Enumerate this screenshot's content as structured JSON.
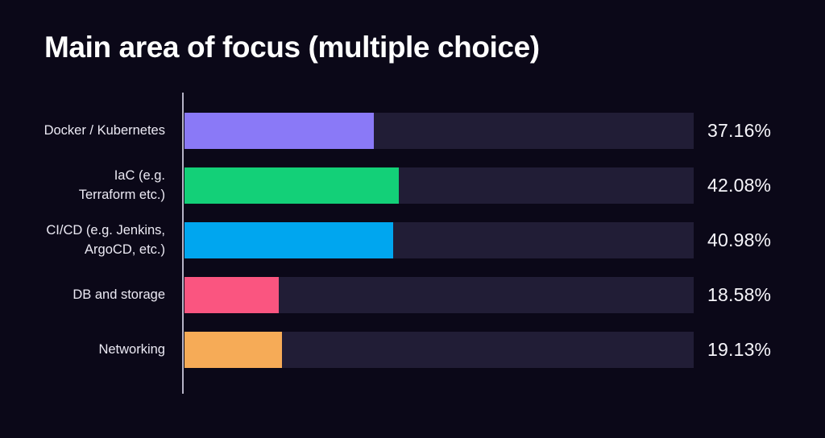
{
  "chart_data": {
    "type": "bar",
    "orientation": "horizontal",
    "title": "Main area of focus (multiple choice)",
    "categories": [
      "Docker / Kubernetes",
      "IaC (e.g.\nTerraform etc.)",
      "CI/CD (e.g. Jenkins,\nArgoCD, etc.)",
      "DB and storage",
      "Networking"
    ],
    "values": [
      37.16,
      42.08,
      40.98,
      18.58,
      19.13
    ],
    "value_labels": [
      "37.16%",
      "42.08%",
      "40.98%",
      "18.58%",
      "19.13%"
    ],
    "colors": [
      "#8a79f7",
      "#13d078",
      "#00a6ef",
      "#fa5580",
      "#f6ab57"
    ],
    "xlim": [
      0,
      100
    ],
    "grid": false,
    "legend": "none",
    "track_color": "#211d36",
    "axis_line_color": "#b6b3c6",
    "background_color": "#0b0818",
    "title_color": "#ffffff",
    "label_color": "#eceaf4"
  }
}
